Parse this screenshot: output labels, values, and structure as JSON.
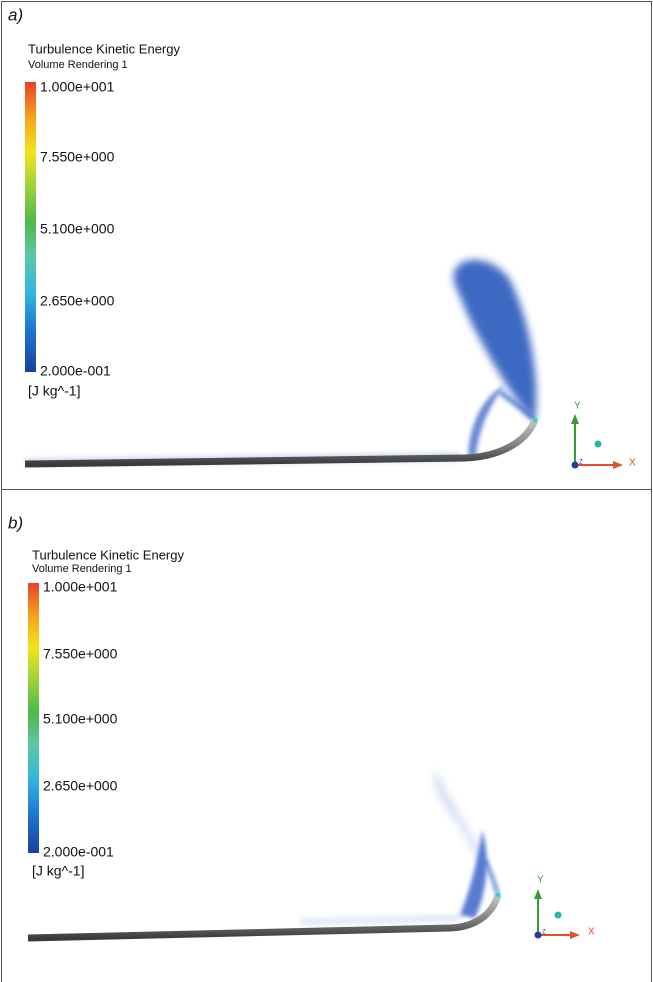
{
  "panels": [
    {
      "label": "a)",
      "legend": {
        "title": "Turbulence Kinetic Energy",
        "subtitle": "Volume Rendering 1",
        "ticks": [
          "1.000e+001",
          "7.550e+000",
          "5.100e+000",
          "2.650e+000",
          "2.000e-001"
        ],
        "unit": "[J kg^-1]"
      },
      "axes": {
        "x": "X",
        "y": "Y",
        "z": "Z"
      }
    },
    {
      "label": "b)",
      "legend": {
        "title": "Turbulence Kinetic Energy",
        "subtitle": "Volume Rendering 1",
        "ticks": [
          "1.000e+001",
          "7.550e+000",
          "5.100e+000",
          "2.650e+000",
          "2.000e-001"
        ],
        "unit": "[J kg^-1]"
      },
      "axes": {
        "x": "X",
        "y": "Y",
        "z": "Z"
      }
    }
  ]
}
